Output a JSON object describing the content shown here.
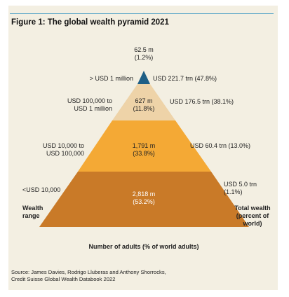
{
  "title": "Figure 1: The global wealth pyramid 2021",
  "colors": {
    "tier1": "#1f5f86",
    "tier2": "#eed3a8",
    "tier3": "#f4a935",
    "tier4": "#c97a28",
    "frame": "#f3efe2",
    "rule": "#5aa6c8"
  },
  "chart_data": {
    "type": "pyramid",
    "title": "Figure 1: The global wealth pyramid 2021",
    "xlabel": "Number of adults (% of world adults)",
    "left_axis_label": "Wealth range",
    "right_axis_label": "Total wealth (percent of world)",
    "tiers": [
      {
        "range": "> USD 1 million",
        "adults": "62.5 m",
        "adults_pct": "(1.2%)",
        "wealth": "USD 221.7 trn (47.8%)"
      },
      {
        "range": "USD 100,000 to USD 1 million",
        "adults": "627 m",
        "adults_pct": "(11.8%)",
        "wealth": "USD 176.5 trn (38.1%)"
      },
      {
        "range": "USD 10,000 to USD 100,000",
        "adults": "1,791 m",
        "adults_pct": "(33.8%)",
        "wealth": "USD 60.4 trn (13.0%)"
      },
      {
        "range": "<USD 10,000",
        "adults": "2,818 m",
        "adults_pct": "(53.2%)",
        "wealth": "USD 5.0 trn (1.1%)"
      }
    ]
  },
  "labels": {
    "t1_range": "> USD 1 million",
    "t1_adults": "62.5 m",
    "t1_adults_pct": "(1.2%)",
    "t1_wealth": "USD 221.7 trn (47.8%)",
    "t2_range_1": "USD 100,000 to",
    "t2_range_2": "USD 1 million",
    "t2_adults": "627 m",
    "t2_adults_pct": "(11.8%)",
    "t2_wealth": "USD 176.5 trn (38.1%)",
    "t3_range_1": "USD 10,000 to",
    "t3_range_2": "USD 100,000",
    "t3_adults": "1,791 m",
    "t3_adults_pct": "(33.8%)",
    "t3_wealth": "USD 60.4 trn (13.0%)",
    "t4_range": "<USD 10,000",
    "t4_adults": "2,818 m",
    "t4_adults_pct": "(53.2%)",
    "t4_wealth_1": "USD 5.0 trn",
    "t4_wealth_2": "(1.1%)",
    "left_axis_1": "Wealth",
    "left_axis_2": "range",
    "right_axis_1": "Total wealth",
    "right_axis_2": "(percent of",
    "right_axis_3": "world)",
    "xlabel": "Number of adults (% of world adults)"
  },
  "source": {
    "line1": "Source: James Davies, Rodrigo Lluberas and Anthony Shorrocks,",
    "line2": "Credit Suisse Global Wealth Databook 2022"
  }
}
